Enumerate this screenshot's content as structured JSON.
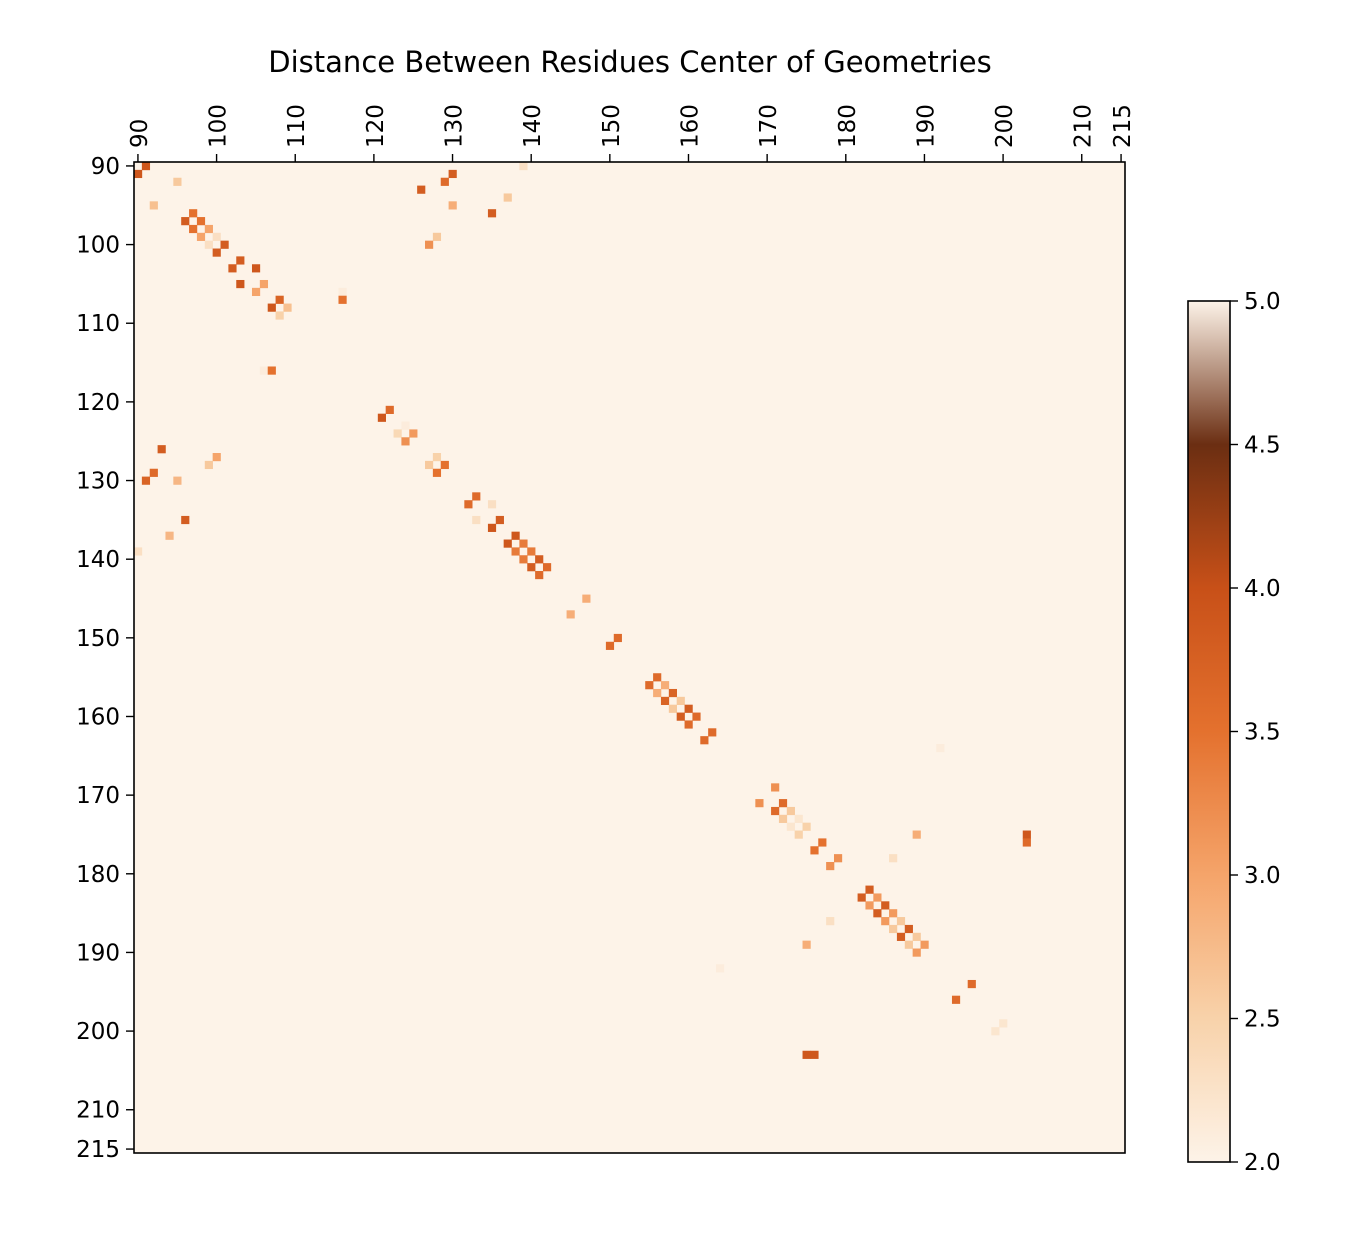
{
  "chart_data": {
    "type": "heatmap",
    "title": "Distance Between Residues Center of Geometries",
    "x_ticks": [
      90,
      100,
      110,
      120,
      130,
      140,
      150,
      160,
      170,
      180,
      190,
      200,
      210,
      215
    ],
    "y_ticks": [
      90,
      100,
      110,
      120,
      130,
      140,
      150,
      160,
      170,
      180,
      190,
      200,
      210,
      215
    ],
    "axis_range": [
      90,
      215
    ],
    "colorbar": {
      "min": 2.0,
      "max": 5.0,
      "ticks": [
        "2.0",
        "2.5",
        "3.0",
        "3.5",
        "4.0",
        "4.5",
        "5.0"
      ],
      "colors": [
        {
          "v": 2.0,
          "color": "#fdf3e8"
        },
        {
          "v": 2.5,
          "color": "#f8d2aa"
        },
        {
          "v": 3.0,
          "color": "#f5a46a"
        },
        {
          "v": 3.5,
          "color": "#e4712e"
        },
        {
          "v": 4.0,
          "color": "#c85018"
        },
        {
          "v": 4.5,
          "color": "#6b2e12"
        },
        {
          "v": 5.0,
          "color": "#fdf3e8"
        }
      ]
    },
    "background_color": "#fdf3e8",
    "cells": [
      [
        91,
        90,
        3.9
      ],
      [
        90,
        91,
        3.9
      ],
      [
        95,
        92,
        2.6
      ],
      [
        92,
        95,
        2.7
      ],
      [
        129,
        92,
        3.6
      ],
      [
        130,
        91,
        3.8
      ],
      [
        126,
        93,
        3.8
      ],
      [
        137,
        94,
        2.6
      ],
      [
        139,
        90,
        2.3
      ],
      [
        135,
        96,
        3.8
      ],
      [
        130,
        95,
        2.9
      ],
      [
        97,
        96,
        3.5
      ],
      [
        96,
        97,
        3.8
      ],
      [
        98,
        97,
        3.5
      ],
      [
        97,
        98,
        3.5
      ],
      [
        99,
        98,
        3.0
      ],
      [
        98,
        99,
        3.0
      ],
      [
        100,
        99,
        2.3
      ],
      [
        99,
        100,
        2.3
      ],
      [
        101,
        100,
        3.8
      ],
      [
        100,
        101,
        3.8
      ],
      [
        103,
        102,
        3.8
      ],
      [
        102,
        103,
        3.8
      ],
      [
        105,
        103,
        3.9
      ],
      [
        103,
        105,
        3.9
      ],
      [
        106,
        105,
        3.0
      ],
      [
        105,
        106,
        3.0
      ],
      [
        108,
        107,
        3.7
      ],
      [
        107,
        108,
        3.9
      ],
      [
        109,
        108,
        2.7
      ],
      [
        108,
        109,
        2.5
      ],
      [
        128,
        99,
        2.6
      ],
      [
        127,
        100,
        3.2
      ],
      [
        116,
        106,
        2.1
      ],
      [
        116,
        107,
        3.5
      ],
      [
        121,
        107,
        2.0
      ],
      [
        106,
        116,
        2.1
      ],
      [
        107,
        116,
        3.5
      ],
      [
        107,
        121,
        2.0
      ],
      [
        122,
        121,
        3.6
      ],
      [
        121,
        122,
        3.9
      ],
      [
        124,
        123,
        2.1
      ],
      [
        123,
        124,
        2.4
      ],
      [
        125,
        124,
        3.1
      ],
      [
        124,
        125,
        3.2
      ],
      [
        93,
        126,
        3.8
      ],
      [
        92,
        129,
        3.6
      ],
      [
        91,
        130,
        3.7
      ],
      [
        95,
        130,
        2.8
      ],
      [
        100,
        127,
        3.0
      ],
      [
        99,
        128,
        2.6
      ],
      [
        128,
        127,
        2.5
      ],
      [
        127,
        128,
        2.6
      ],
      [
        129,
        128,
        3.5
      ],
      [
        128,
        129,
        3.5
      ],
      [
        133,
        132,
        3.6
      ],
      [
        132,
        133,
        3.6
      ],
      [
        135,
        133,
        2.3
      ],
      [
        133,
        135,
        2.3
      ],
      [
        136,
        135,
        3.8
      ],
      [
        135,
        136,
        3.9
      ],
      [
        96,
        135,
        3.8
      ],
      [
        94,
        137,
        2.8
      ],
      [
        90,
        139,
        2.3
      ],
      [
        138,
        137,
        3.9
      ],
      [
        137,
        138,
        3.9
      ],
      [
        139,
        138,
        3.4
      ],
      [
        138,
        139,
        3.4
      ],
      [
        140,
        139,
        3.4
      ],
      [
        139,
        140,
        3.4
      ],
      [
        141,
        140,
        3.8
      ],
      [
        140,
        141,
        3.8
      ],
      [
        142,
        141,
        3.6
      ],
      [
        141,
        142,
        3.6
      ],
      [
        147,
        145,
        2.9
      ],
      [
        145,
        147,
        2.9
      ],
      [
        151,
        150,
        3.6
      ],
      [
        150,
        151,
        3.6
      ],
      [
        156,
        155,
        3.6
      ],
      [
        155,
        156,
        3.6
      ],
      [
        157,
        156,
        2.9
      ],
      [
        156,
        157,
        2.9
      ],
      [
        158,
        157,
        3.7
      ],
      [
        157,
        158,
        3.7
      ],
      [
        159,
        158,
        2.6
      ],
      [
        158,
        159,
        2.6
      ],
      [
        160,
        159,
        3.8
      ],
      [
        159,
        160,
        3.8
      ],
      [
        161,
        160,
        3.6
      ],
      [
        160,
        161,
        3.6
      ],
      [
        163,
        162,
        3.6
      ],
      [
        162,
        163,
        3.6
      ],
      [
        192,
        164,
        2.1
      ],
      [
        164,
        192,
        2.1
      ],
      [
        171,
        169,
        3.2
      ],
      [
        169,
        171,
        3.2
      ],
      [
        172,
        171,
        3.6
      ],
      [
        171,
        172,
        3.6
      ],
      [
        173,
        172,
        2.6
      ],
      [
        172,
        173,
        2.6
      ],
      [
        174,
        173,
        2.2
      ],
      [
        173,
        174,
        2.2
      ],
      [
        175,
        174,
        2.5
      ],
      [
        174,
        175,
        2.5
      ],
      [
        189,
        175,
        2.9
      ],
      [
        203,
        175,
        3.9
      ],
      [
        203,
        176,
        3.6
      ],
      [
        177,
        176,
        3.5
      ],
      [
        176,
        177,
        3.5
      ],
      [
        179,
        178,
        3.2
      ],
      [
        178,
        179,
        3.2
      ],
      [
        186,
        178,
        2.3
      ],
      [
        178,
        186,
        2.3
      ],
      [
        175,
        189,
        2.9
      ],
      [
        175,
        203,
        3.9
      ],
      [
        176,
        203,
        3.9
      ],
      [
        183,
        182,
        3.8
      ],
      [
        182,
        183,
        3.8
      ],
      [
        184,
        183,
        3.1
      ],
      [
        183,
        184,
        3.1
      ],
      [
        185,
        184,
        3.8
      ],
      [
        184,
        185,
        3.8
      ],
      [
        186,
        185,
        3.1
      ],
      [
        185,
        186,
        3.1
      ],
      [
        187,
        186,
        2.6
      ],
      [
        186,
        187,
        2.6
      ],
      [
        188,
        187,
        3.8
      ],
      [
        187,
        188,
        3.8
      ],
      [
        189,
        188,
        2.6
      ],
      [
        188,
        189,
        2.6
      ],
      [
        190,
        189,
        3.1
      ],
      [
        189,
        190,
        3.1
      ],
      [
        196,
        194,
        3.6
      ],
      [
        194,
        196,
        3.6
      ],
      [
        200,
        199,
        2.2
      ],
      [
        199,
        200,
        2.2
      ]
    ]
  }
}
